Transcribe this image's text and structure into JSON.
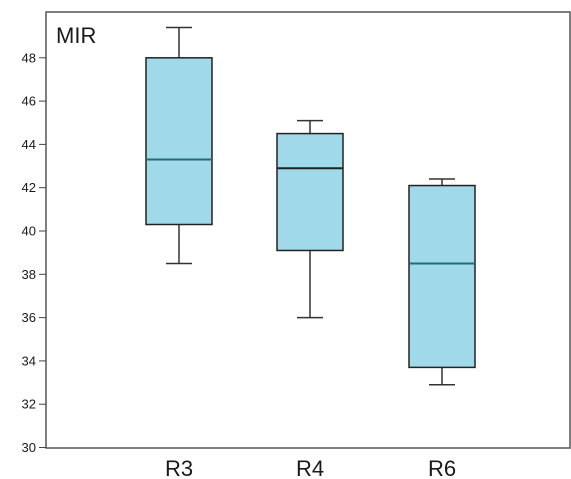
{
  "chart_data": {
    "type": "box",
    "title": "MIR",
    "ylim": [
      30,
      50
    ],
    "yticks": [
      30,
      32,
      34,
      36,
      38,
      40,
      42,
      44,
      46,
      48
    ],
    "grid": false,
    "box_fill": "#9fd9ea",
    "box_stroke": "#222222",
    "categories": [
      "R3",
      "R4",
      "R6"
    ],
    "boxes": [
      {
        "label": "R3",
        "min": 38.5,
        "q1": 40.3,
        "median": 43.3,
        "q3": 48.0,
        "max": 49.4,
        "median_color": "#1f6f6f"
      },
      {
        "label": "R4",
        "min": 36.0,
        "q1": 39.1,
        "median": 42.9,
        "q3": 44.5,
        "max": 45.1,
        "median_color": "#222222"
      },
      {
        "label": "R6",
        "min": 32.9,
        "q1": 33.7,
        "median": 38.5,
        "q3": 42.1,
        "max": 42.4,
        "median_color": "#1f6f6f"
      }
    ]
  }
}
